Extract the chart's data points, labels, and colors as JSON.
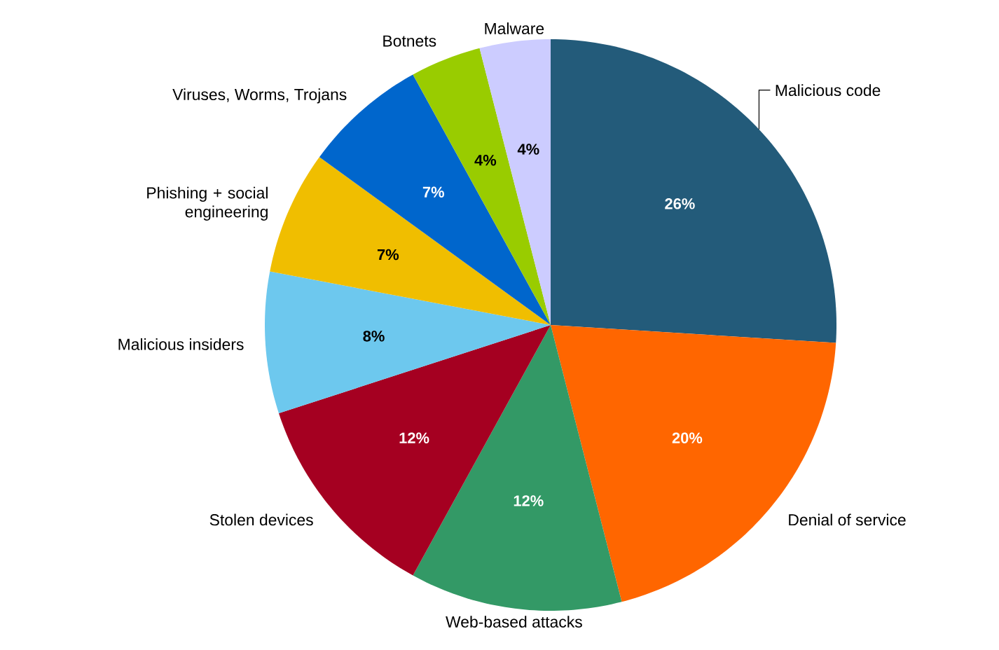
{
  "chart_data": {
    "type": "pie",
    "categories": [
      "Malicious code",
      "Denial of service",
      "Web-based attacks",
      "Stolen devices",
      "Malicious insiders",
      "Phishing + social engineering",
      "Viruses, Worms, Trojans",
      "Botnets",
      "Malware"
    ],
    "values": [
      26,
      20,
      12,
      12,
      8,
      7,
      7,
      4,
      4
    ],
    "value_labels": [
      "26%",
      "20%",
      "12%",
      "12%",
      "8%",
      "7%",
      "7%",
      "4%",
      "4%"
    ],
    "colors": [
      "#235b7a",
      "#ff6600",
      "#339966",
      "#a50021",
      "#6dc8ee",
      "#f0be00",
      "#0066cc",
      "#99cc00",
      "#ccccff"
    ]
  }
}
